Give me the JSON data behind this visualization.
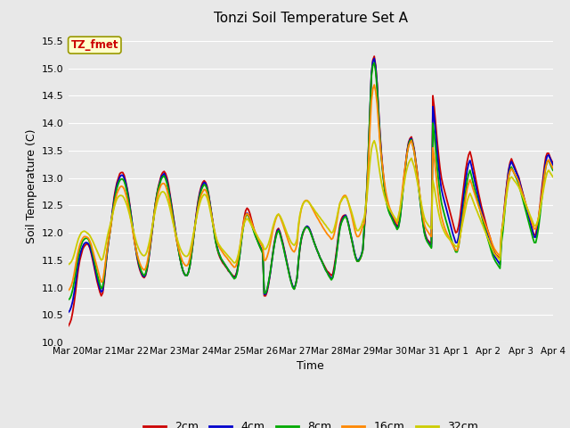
{
  "title": "Tonzi Soil Temperature Set A",
  "xlabel": "Time",
  "ylabel": "Soil Temperature (C)",
  "ylim": [
    10.0,
    15.7
  ],
  "yticks": [
    10.0,
    10.5,
    11.0,
    11.5,
    12.0,
    12.5,
    13.0,
    13.5,
    14.0,
    14.5,
    15.0,
    15.5
  ],
  "bg_color": "#e8e8e8",
  "plot_bg_color": "#e8e8e8",
  "grid_color": "#ffffff",
  "legend_label": "TZ_fmet",
  "legend_box_color": "#ffffcc",
  "legend_box_edge": "#999900",
  "series_colors": {
    "2cm": "#cc0000",
    "4cm": "#0000cc",
    "8cm": "#00aa00",
    "16cm": "#ff8800",
    "32cm": "#cccc00"
  },
  "xtick_labels": [
    "Mar 20",
    "Mar 21",
    "Mar 22",
    "Mar 23",
    "Mar 24",
    "Mar 25",
    "Mar 26",
    "Mar 27",
    "Mar 28",
    "Mar 29",
    "Mar 30",
    "Mar 31",
    "Apr 1",
    "Apr 2",
    "Apr 3",
    "Apr 4"
  ],
  "data_2cm": [
    10.3,
    10.35,
    10.42,
    10.55,
    10.72,
    10.92,
    11.15,
    11.35,
    11.5,
    11.6,
    11.7,
    11.75,
    11.78,
    11.8,
    11.78,
    11.72,
    11.62,
    11.5,
    11.38,
    11.25,
    11.12,
    11.02,
    10.92,
    10.85,
    10.9,
    11.1,
    11.35,
    11.6,
    11.82,
    12.0,
    12.22,
    12.45,
    12.65,
    12.8,
    12.92,
    13.0,
    13.08,
    13.1,
    13.1,
    13.05,
    12.95,
    12.82,
    12.68,
    12.5,
    12.3,
    12.1,
    11.9,
    11.72,
    11.55,
    11.42,
    11.32,
    11.25,
    11.2,
    11.18,
    11.22,
    11.32,
    11.48,
    11.68,
    11.9,
    12.12,
    12.35,
    12.55,
    12.72,
    12.85,
    12.95,
    13.05,
    13.1,
    13.12,
    13.08,
    13.0,
    12.88,
    12.72,
    12.55,
    12.38,
    12.2,
    12.02,
    11.85,
    11.7,
    11.55,
    11.42,
    11.32,
    11.25,
    11.22,
    11.22,
    11.28,
    11.4,
    11.58,
    11.8,
    12.02,
    12.25,
    12.45,
    12.62,
    12.75,
    12.85,
    12.92,
    12.95,
    12.92,
    12.85,
    12.72,
    12.55,
    12.38,
    12.2,
    12.02,
    11.85,
    11.72,
    11.62,
    11.55,
    11.5,
    11.45,
    11.42,
    11.38,
    11.35,
    11.3,
    11.28,
    11.25,
    11.22,
    11.2,
    11.22,
    11.3,
    11.45,
    11.65,
    11.88,
    12.1,
    12.28,
    12.4,
    12.45,
    12.42,
    12.35,
    12.25,
    12.15,
    12.05,
    11.95,
    11.88,
    11.82,
    11.75,
    11.7,
    11.65,
    10.85,
    10.85,
    10.92,
    11.05,
    11.22,
    11.42,
    11.62,
    11.8,
    11.95,
    12.05,
    12.08,
    12.02,
    11.92,
    11.82,
    11.7,
    11.58,
    11.45,
    11.32,
    11.2,
    11.1,
    11.02,
    10.98,
    11.05,
    11.18,
    11.48,
    11.72,
    11.88,
    11.98,
    12.05,
    12.1,
    12.12,
    12.1,
    12.05,
    11.98,
    11.9,
    11.82,
    11.75,
    11.68,
    11.62,
    11.55,
    11.5,
    11.45,
    11.4,
    11.35,
    11.3,
    11.28,
    11.25,
    11.22,
    11.25,
    11.38,
    11.55,
    11.75,
    11.98,
    12.15,
    12.25,
    12.3,
    12.32,
    12.32,
    12.25,
    12.15,
    12.02,
    11.9,
    11.78,
    11.65,
    11.55,
    11.48,
    11.48,
    11.52,
    11.58,
    11.68,
    12.05,
    12.38,
    12.82,
    13.48,
    14.2,
    14.88,
    15.15,
    15.22,
    15.05,
    14.72,
    14.25,
    13.82,
    13.45,
    13.15,
    12.88,
    12.68,
    12.55,
    12.45,
    12.38,
    12.32,
    12.28,
    12.22,
    12.18,
    12.12,
    12.15,
    12.28,
    12.52,
    12.78,
    13.05,
    13.28,
    13.5,
    13.65,
    13.72,
    13.75,
    13.65,
    13.52,
    13.32,
    13.12,
    12.88,
    12.65,
    12.42,
    12.22,
    12.05,
    11.95,
    11.88,
    11.85,
    11.82,
    11.8,
    14.5,
    14.28,
    13.98,
    13.68,
    13.42,
    13.18,
    13.0,
    12.88,
    12.78,
    12.68,
    12.58,
    12.48,
    12.38,
    12.28,
    12.18,
    12.08,
    12.0,
    12.02,
    12.12,
    12.28,
    12.5,
    12.72,
    12.95,
    13.15,
    13.3,
    13.42,
    13.48,
    13.38,
    13.25,
    13.12,
    12.98,
    12.85,
    12.72,
    12.6,
    12.48,
    12.38,
    12.28,
    12.18,
    12.08,
    12.0,
    11.92,
    11.82,
    11.72,
    11.65,
    11.6,
    11.58,
    11.55,
    11.52,
    11.98,
    12.18,
    12.45,
    12.72,
    12.95,
    13.15,
    13.28,
    13.35,
    13.28,
    13.22,
    13.15,
    13.08,
    13.02,
    12.92,
    12.82,
    12.72,
    12.62,
    12.52,
    12.42,
    12.32,
    12.22,
    12.12,
    12.02,
    11.95,
    11.98,
    12.1,
    12.28,
    12.5,
    12.75,
    12.98,
    13.2,
    13.38,
    13.45,
    13.45,
    13.38,
    13.32,
    13.28
  ],
  "data_4cm": [
    10.55,
    10.58,
    10.65,
    10.75,
    10.9,
    11.08,
    11.28,
    11.45,
    11.58,
    11.68,
    11.75,
    11.8,
    11.82,
    11.82,
    11.8,
    11.75,
    11.65,
    11.55,
    11.42,
    11.3,
    11.18,
    11.08,
    10.98,
    10.92,
    10.95,
    11.15,
    11.38,
    11.62,
    11.82,
    12.0,
    12.2,
    12.42,
    12.6,
    12.75,
    12.88,
    12.95,
    13.02,
    13.05,
    13.05,
    13.0,
    12.92,
    12.8,
    12.65,
    12.48,
    12.3,
    12.1,
    11.9,
    11.72,
    11.58,
    11.45,
    11.35,
    11.28,
    11.22,
    11.2,
    11.24,
    11.35,
    11.5,
    11.7,
    11.92,
    12.12,
    12.35,
    12.55,
    12.7,
    12.82,
    12.92,
    13.02,
    13.05,
    13.08,
    13.02,
    12.95,
    12.82,
    12.68,
    12.52,
    12.35,
    12.18,
    12.0,
    11.85,
    11.7,
    11.55,
    11.42,
    11.32,
    11.25,
    11.22,
    11.22,
    11.28,
    11.4,
    11.58,
    11.78,
    12.0,
    12.22,
    12.42,
    12.58,
    12.72,
    12.82,
    12.88,
    12.92,
    12.9,
    12.82,
    12.7,
    12.55,
    12.38,
    12.2,
    12.02,
    11.85,
    11.75,
    11.65,
    11.58,
    11.52,
    11.48,
    11.44,
    11.4,
    11.36,
    11.32,
    11.28,
    11.24,
    11.2,
    11.18,
    11.2,
    11.28,
    11.44,
    11.62,
    11.85,
    12.05,
    12.22,
    12.32,
    12.36,
    12.32,
    12.26,
    12.18,
    12.1,
    12.02,
    11.95,
    11.88,
    11.82,
    11.76,
    11.7,
    11.65,
    10.88,
    10.88,
    10.95,
    11.08,
    11.22,
    11.4,
    11.6,
    11.78,
    11.92,
    12.02,
    12.06,
    12.0,
    11.9,
    11.8,
    11.68,
    11.56,
    11.44,
    11.32,
    11.2,
    11.1,
    11.02,
    10.98,
    11.06,
    11.18,
    11.5,
    11.74,
    11.9,
    12.0,
    12.06,
    12.1,
    12.12,
    12.1,
    12.05,
    11.98,
    11.9,
    11.82,
    11.75,
    11.68,
    11.62,
    11.55,
    11.5,
    11.44,
    11.38,
    11.32,
    11.28,
    11.24,
    11.2,
    11.16,
    11.2,
    11.32,
    11.5,
    11.7,
    11.92,
    12.1,
    12.2,
    12.26,
    12.3,
    12.32,
    12.26,
    12.16,
    12.04,
    11.92,
    11.8,
    11.66,
    11.56,
    11.5,
    11.5,
    11.54,
    11.6,
    11.7,
    12.08,
    12.42,
    12.86,
    13.52,
    14.22,
    14.9,
    15.12,
    15.18,
    15.02,
    14.7,
    14.22,
    13.78,
    13.42,
    13.12,
    12.86,
    12.66,
    12.52,
    12.42,
    12.35,
    12.3,
    12.24,
    12.18,
    12.14,
    12.08,
    12.12,
    12.26,
    12.5,
    12.76,
    13.02,
    13.26,
    13.48,
    13.62,
    13.7,
    13.72,
    13.62,
    13.5,
    13.3,
    13.1,
    12.86,
    12.62,
    12.4,
    12.2,
    12.02,
    11.92,
    11.86,
    11.82,
    11.78,
    11.74,
    14.3,
    14.08,
    13.78,
    13.48,
    13.22,
    12.98,
    12.8,
    12.68,
    12.58,
    12.48,
    12.38,
    12.28,
    12.18,
    12.08,
    11.98,
    11.9,
    11.82,
    11.82,
    11.92,
    12.1,
    12.32,
    12.54,
    12.76,
    12.96,
    13.14,
    13.26,
    13.32,
    13.22,
    13.1,
    12.98,
    12.86,
    12.74,
    12.62,
    12.5,
    12.4,
    12.3,
    12.2,
    12.1,
    12.0,
    11.9,
    11.82,
    11.72,
    11.64,
    11.58,
    11.54,
    11.5,
    11.46,
    11.42,
    11.92,
    12.12,
    12.4,
    12.68,
    12.92,
    13.12,
    13.24,
    13.3,
    13.24,
    13.18,
    13.12,
    13.06,
    13.0,
    12.9,
    12.8,
    12.7,
    12.6,
    12.5,
    12.4,
    12.3,
    12.2,
    12.1,
    12.0,
    11.92,
    11.92,
    12.04,
    12.2,
    12.42,
    12.66,
    12.9,
    13.12,
    13.3,
    13.4,
    13.42,
    13.36,
    13.3,
    13.24
  ],
  "data_8cm": [
    10.78,
    10.8,
    10.86,
    10.96,
    11.1,
    11.26,
    11.44,
    11.58,
    11.7,
    11.78,
    11.85,
    11.88,
    11.9,
    11.9,
    11.88,
    11.82,
    11.74,
    11.62,
    11.5,
    11.38,
    11.26,
    11.16,
    11.06,
    10.98,
    11.02,
    11.2,
    11.42,
    11.65,
    11.84,
    12.0,
    12.18,
    12.38,
    12.56,
    12.7,
    12.82,
    12.9,
    12.96,
    12.98,
    12.98,
    12.94,
    12.86,
    12.74,
    12.6,
    12.44,
    12.26,
    12.08,
    11.9,
    11.74,
    11.6,
    11.48,
    11.38,
    11.3,
    11.25,
    11.22,
    11.26,
    11.36,
    11.52,
    11.72,
    11.93,
    12.14,
    12.35,
    12.54,
    12.7,
    12.82,
    12.9,
    12.98,
    13.02,
    13.04,
    12.98,
    12.9,
    12.78,
    12.64,
    12.48,
    12.32,
    12.15,
    11.98,
    11.83,
    11.68,
    11.55,
    11.42,
    11.32,
    11.26,
    11.22,
    11.22,
    11.28,
    11.4,
    11.58,
    11.78,
    12.0,
    12.2,
    12.38,
    12.55,
    12.68,
    12.78,
    12.84,
    12.88,
    12.86,
    12.8,
    12.68,
    12.52,
    12.36,
    12.18,
    12.0,
    11.84,
    11.72,
    11.64,
    11.58,
    11.52,
    11.48,
    11.44,
    11.4,
    11.36,
    11.32,
    11.28,
    11.24,
    11.2,
    11.16,
    11.18,
    11.26,
    11.42,
    11.62,
    11.84,
    12.04,
    12.2,
    12.3,
    12.34,
    12.3,
    12.24,
    12.16,
    12.08,
    12.0,
    11.93,
    11.87,
    11.8,
    11.74,
    11.68,
    11.62,
    10.9,
    10.9,
    10.97,
    11.1,
    11.24,
    11.42,
    11.6,
    11.77,
    11.9,
    12.0,
    12.04,
    11.98,
    11.88,
    11.78,
    11.66,
    11.54,
    11.42,
    11.3,
    11.18,
    11.08,
    11.0,
    10.97,
    11.05,
    11.18,
    11.5,
    11.74,
    11.9,
    12.0,
    12.06,
    12.1,
    12.1,
    12.08,
    12.03,
    11.96,
    11.89,
    11.82,
    11.75,
    11.68,
    11.62,
    11.55,
    11.5,
    11.44,
    11.38,
    11.32,
    11.28,
    11.22,
    11.18,
    11.14,
    11.18,
    11.3,
    11.48,
    11.68,
    11.9,
    12.08,
    12.18,
    12.24,
    12.28,
    12.3,
    12.24,
    12.14,
    12.02,
    11.9,
    11.78,
    11.64,
    11.54,
    11.48,
    11.48,
    11.52,
    11.58,
    11.68,
    12.12,
    12.46,
    12.9,
    13.55,
    14.2,
    14.85,
    15.05,
    15.1,
    14.94,
    14.62,
    14.15,
    13.72,
    13.36,
    13.08,
    12.84,
    12.64,
    12.5,
    12.4,
    12.33,
    12.28,
    12.22,
    12.16,
    12.12,
    12.06,
    12.1,
    12.24,
    12.48,
    12.74,
    13.0,
    13.24,
    13.45,
    13.6,
    13.68,
    13.7,
    13.6,
    13.48,
    13.28,
    13.08,
    12.84,
    12.6,
    12.38,
    12.18,
    12.0,
    11.9,
    11.84,
    11.8,
    11.76,
    11.72,
    14.0,
    13.78,
    13.5,
    13.2,
    12.95,
    12.72,
    12.55,
    12.44,
    12.34,
    12.24,
    12.15,
    12.06,
    11.97,
    11.88,
    11.8,
    11.72,
    11.65,
    11.65,
    11.75,
    11.93,
    12.14,
    12.35,
    12.56,
    12.76,
    12.95,
    13.07,
    13.14,
    13.04,
    12.93,
    12.82,
    12.72,
    12.62,
    12.52,
    12.42,
    12.32,
    12.22,
    12.12,
    12.02,
    11.93,
    11.84,
    11.75,
    11.66,
    11.58,
    11.52,
    11.47,
    11.43,
    11.39,
    11.35,
    11.82,
    12.02,
    12.3,
    12.58,
    12.82,
    13.02,
    13.14,
    13.2,
    13.14,
    13.08,
    13.02,
    12.96,
    12.9,
    12.8,
    12.7,
    12.6,
    12.5,
    12.4,
    12.3,
    12.2,
    12.1,
    12.0,
    11.9,
    11.82,
    11.82,
    11.94,
    12.1,
    12.32,
    12.56,
    12.8,
    13.02,
    13.2,
    13.3,
    13.32,
    13.26,
    13.2,
    13.14
  ],
  "data_16cm": [
    10.95,
    10.98,
    11.03,
    11.12,
    11.25,
    11.4,
    11.56,
    11.68,
    11.78,
    11.85,
    11.9,
    11.93,
    11.93,
    11.92,
    11.9,
    11.85,
    11.78,
    11.68,
    11.58,
    11.48,
    11.38,
    11.28,
    11.18,
    11.1,
    11.12,
    11.28,
    11.48,
    11.68,
    11.86,
    12.0,
    12.18,
    12.35,
    12.5,
    12.62,
    12.72,
    12.78,
    12.83,
    12.85,
    12.84,
    12.8,
    12.72,
    12.62,
    12.49,
    12.35,
    12.19,
    12.04,
    11.88,
    11.74,
    11.62,
    11.52,
    11.44,
    11.38,
    11.34,
    11.32,
    11.35,
    11.44,
    11.58,
    11.76,
    11.96,
    12.16,
    12.34,
    12.5,
    12.63,
    12.74,
    12.82,
    12.88,
    12.9,
    12.9,
    12.86,
    12.78,
    12.67,
    12.55,
    12.4,
    12.26,
    12.1,
    11.96,
    11.83,
    11.72,
    11.62,
    11.54,
    11.47,
    11.43,
    11.4,
    11.4,
    11.44,
    11.54,
    11.68,
    11.85,
    12.02,
    12.2,
    12.36,
    12.5,
    12.61,
    12.7,
    12.75,
    12.79,
    12.78,
    12.72,
    12.62,
    12.49,
    12.34,
    12.2,
    12.07,
    11.94,
    11.84,
    11.77,
    11.72,
    11.68,
    11.64,
    11.6,
    11.57,
    11.54,
    11.5,
    11.47,
    11.43,
    11.4,
    11.37,
    11.38,
    11.45,
    11.57,
    11.73,
    11.93,
    12.11,
    12.24,
    12.32,
    12.35,
    12.32,
    12.27,
    12.2,
    12.13,
    12.06,
    12.0,
    11.94,
    11.88,
    11.83,
    11.78,
    11.73,
    11.5,
    11.5,
    11.56,
    11.65,
    11.77,
    11.9,
    12.04,
    12.15,
    12.24,
    12.31,
    12.34,
    12.3,
    12.23,
    12.16,
    12.08,
    12.0,
    11.92,
    11.84,
    11.77,
    11.71,
    11.67,
    11.65,
    11.7,
    11.8,
    12.1,
    12.3,
    12.44,
    12.52,
    12.57,
    12.59,
    12.59,
    12.57,
    12.53,
    12.48,
    12.43,
    12.38,
    12.33,
    12.28,
    12.24,
    12.19,
    12.15,
    12.1,
    12.06,
    12.02,
    11.98,
    11.95,
    11.92,
    11.88,
    11.9,
    11.98,
    12.1,
    12.24,
    12.4,
    12.54,
    12.6,
    12.65,
    12.68,
    12.68,
    12.63,
    12.54,
    12.44,
    12.34,
    12.22,
    12.1,
    11.99,
    11.93,
    11.93,
    11.97,
    12.04,
    12.12,
    12.18,
    12.44,
    12.8,
    13.32,
    13.9,
    14.4,
    14.62,
    14.7,
    14.58,
    14.35,
    14.0,
    13.65,
    13.38,
    13.15,
    12.94,
    12.76,
    12.63,
    12.52,
    12.44,
    12.38,
    12.32,
    12.27,
    12.22,
    12.17,
    12.28,
    12.42,
    12.64,
    12.86,
    13.08,
    13.28,
    13.45,
    13.58,
    13.64,
    13.68,
    13.58,
    13.47,
    13.28,
    13.1,
    12.88,
    12.67,
    12.48,
    12.3,
    12.16,
    12.08,
    12.04,
    12.0,
    11.96,
    11.93,
    13.55,
    13.38,
    13.12,
    12.87,
    12.65,
    12.46,
    12.3,
    12.2,
    12.11,
    12.04,
    11.98,
    11.93,
    11.88,
    11.82,
    11.77,
    11.72,
    11.68,
    11.68,
    11.76,
    11.92,
    12.1,
    12.28,
    12.46,
    12.64,
    12.8,
    12.9,
    12.97,
    12.9,
    12.81,
    12.73,
    12.65,
    12.57,
    12.49,
    12.42,
    12.34,
    12.27,
    12.2,
    12.13,
    12.06,
    11.99,
    11.92,
    11.84,
    11.77,
    11.71,
    11.67,
    11.63,
    11.6,
    11.57,
    12.0,
    12.16,
    12.4,
    12.65,
    12.86,
    13.04,
    13.13,
    13.17,
    13.13,
    13.08,
    13.04,
    12.99,
    12.94,
    12.85,
    12.77,
    12.69,
    12.61,
    12.53,
    12.45,
    12.37,
    12.29,
    12.21,
    12.14,
    12.07,
    12.07,
    12.16,
    12.28,
    12.46,
    12.65,
    12.85,
    13.04,
    13.2,
    13.3,
    13.33,
    13.28,
    13.23,
    13.18
  ],
  "data_32cm": [
    11.42,
    11.44,
    11.47,
    11.52,
    11.6,
    11.7,
    11.8,
    11.89,
    11.95,
    12.0,
    12.02,
    12.03,
    12.02,
    12.0,
    11.98,
    11.95,
    11.9,
    11.85,
    11.79,
    11.73,
    11.67,
    11.61,
    11.55,
    11.5,
    11.52,
    11.63,
    11.76,
    11.9,
    12.02,
    12.12,
    12.23,
    12.35,
    12.46,
    12.55,
    12.62,
    12.66,
    12.68,
    12.68,
    12.67,
    12.63,
    12.57,
    12.5,
    12.41,
    12.31,
    12.2,
    12.09,
    11.98,
    11.88,
    11.79,
    11.72,
    11.66,
    11.62,
    11.59,
    11.58,
    11.6,
    11.66,
    11.76,
    11.88,
    12.01,
    12.15,
    12.3,
    12.43,
    12.54,
    12.63,
    12.69,
    12.74,
    12.75,
    12.74,
    12.7,
    12.63,
    12.55,
    12.45,
    12.33,
    12.21,
    12.1,
    11.99,
    11.9,
    11.81,
    11.73,
    11.67,
    11.62,
    11.59,
    11.57,
    11.57,
    11.6,
    11.67,
    11.78,
    11.91,
    12.05,
    12.19,
    12.32,
    12.44,
    12.54,
    12.62,
    12.67,
    12.7,
    12.69,
    12.64,
    12.55,
    12.43,
    12.3,
    12.17,
    12.06,
    11.95,
    11.86,
    11.8,
    11.76,
    11.72,
    11.69,
    11.66,
    11.63,
    11.6,
    11.57,
    11.54,
    11.51,
    11.48,
    11.45,
    11.46,
    11.52,
    11.62,
    11.75,
    11.9,
    12.05,
    12.17,
    12.23,
    12.26,
    12.23,
    12.19,
    12.14,
    12.09,
    12.04,
    11.99,
    11.95,
    11.9,
    11.86,
    11.82,
    11.78,
    11.7,
    11.7,
    11.74,
    11.8,
    11.89,
    11.99,
    12.1,
    12.19,
    12.27,
    12.32,
    12.34,
    12.31,
    12.26,
    12.2,
    12.13,
    12.06,
    11.99,
    11.93,
    11.87,
    11.82,
    11.79,
    11.77,
    11.81,
    11.89,
    12.16,
    12.33,
    12.44,
    12.52,
    12.56,
    12.58,
    12.58,
    12.56,
    12.53,
    12.49,
    12.46,
    12.42,
    12.38,
    12.35,
    12.31,
    12.28,
    12.24,
    12.21,
    12.17,
    12.14,
    12.1,
    12.07,
    12.03,
    12.0,
    12.01,
    12.08,
    12.18,
    12.3,
    12.43,
    12.54,
    12.58,
    12.63,
    12.65,
    12.66,
    12.62,
    12.55,
    12.47,
    12.39,
    12.3,
    12.2,
    12.1,
    12.04,
    12.04,
    12.08,
    12.13,
    12.21,
    12.28,
    12.45,
    12.68,
    12.98,
    13.28,
    13.52,
    13.63,
    13.68,
    13.6,
    13.46,
    13.26,
    13.08,
    12.92,
    12.79,
    12.68,
    12.59,
    12.52,
    12.46,
    12.41,
    12.37,
    12.33,
    12.29,
    12.25,
    12.21,
    12.32,
    12.43,
    12.59,
    12.76,
    12.92,
    13.07,
    13.18,
    13.27,
    13.32,
    13.36,
    13.28,
    13.2,
    13.08,
    12.95,
    12.81,
    12.66,
    12.52,
    12.39,
    12.28,
    12.21,
    12.17,
    12.13,
    12.1,
    12.07,
    12.95,
    12.83,
    12.67,
    12.51,
    12.37,
    12.25,
    12.15,
    12.08,
    12.02,
    11.97,
    11.93,
    11.9,
    11.87,
    11.84,
    11.81,
    11.78,
    11.75,
    11.75,
    11.82,
    11.94,
    12.07,
    12.2,
    12.33,
    12.46,
    12.58,
    12.66,
    12.72,
    12.66,
    12.59,
    12.52,
    12.45,
    12.39,
    12.32,
    12.26,
    12.19,
    12.13,
    12.06,
    12.0,
    11.93,
    11.87,
    11.8,
    11.74,
    11.68,
    11.62,
    11.59,
    11.56,
    11.53,
    11.5,
    12.0,
    12.14,
    12.35,
    12.57,
    12.75,
    12.91,
    12.99,
    13.02,
    12.99,
    12.95,
    12.92,
    12.88,
    12.84,
    12.78,
    12.71,
    12.65,
    12.58,
    12.52,
    12.45,
    12.39,
    12.32,
    12.26,
    12.19,
    12.13,
    12.13,
    12.19,
    12.27,
    12.42,
    12.57,
    12.72,
    12.87,
    13.0,
    13.1,
    13.14,
    13.1,
    13.06,
    13.02
  ]
}
